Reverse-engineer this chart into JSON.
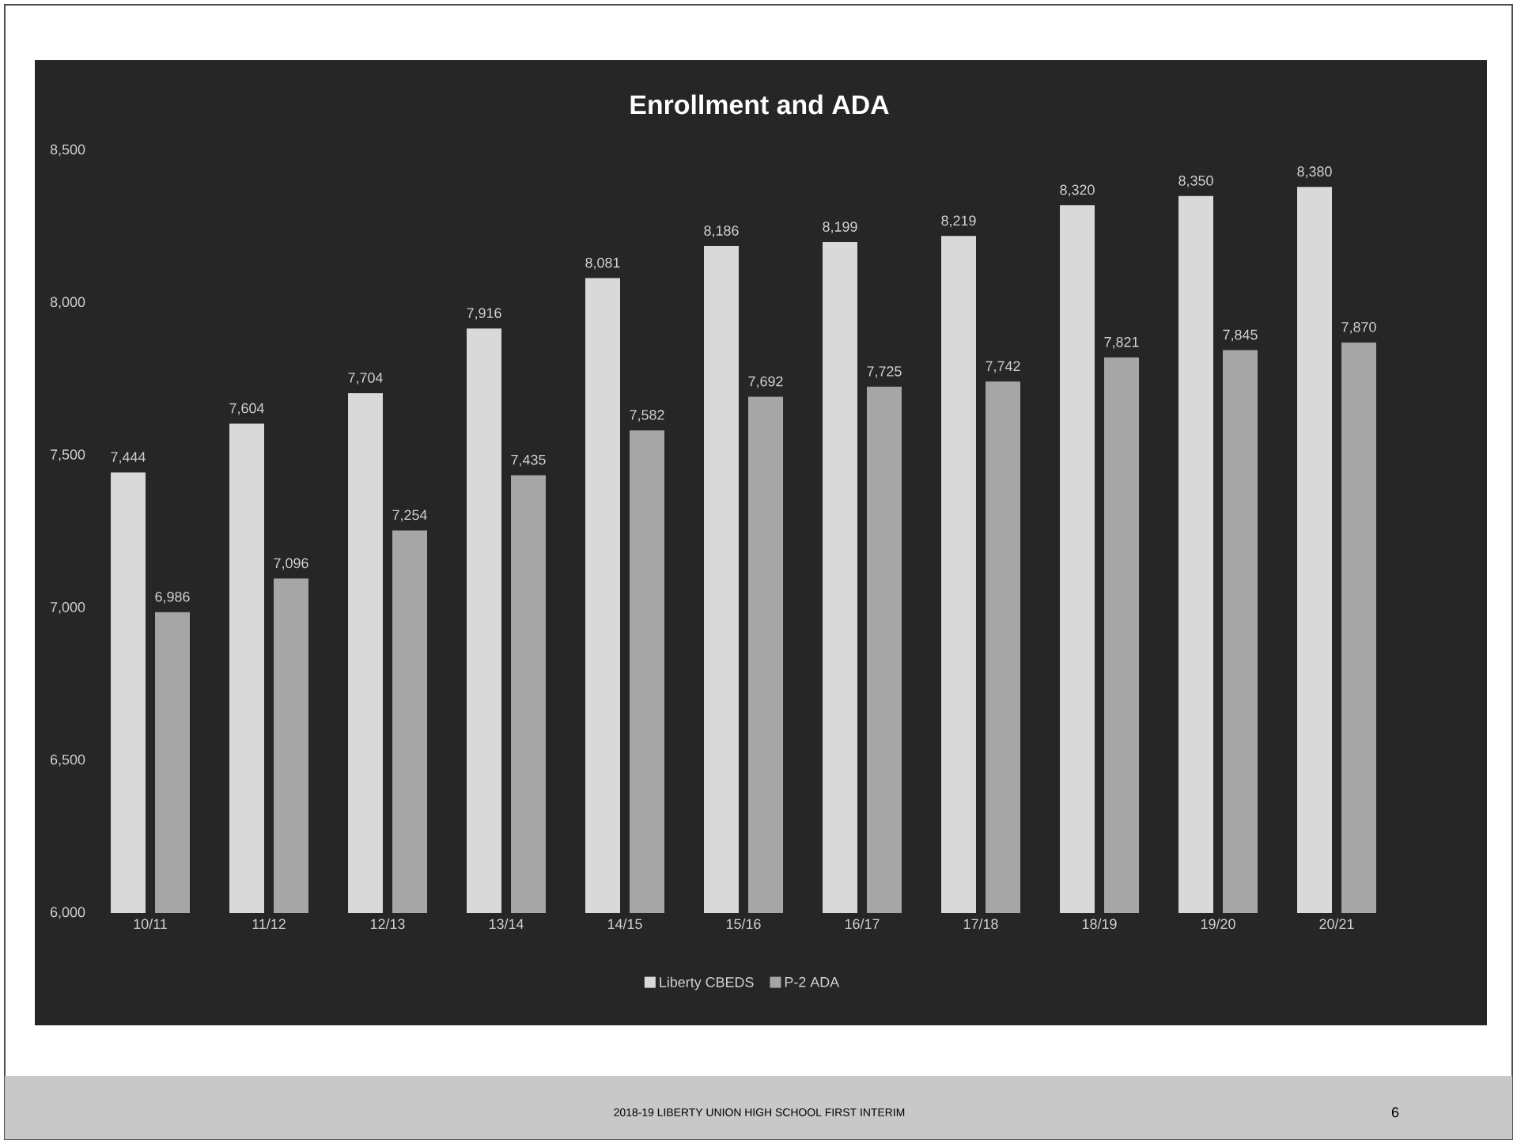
{
  "chart_data": {
    "type": "bar",
    "title": "Enrollment and ADA",
    "categories": [
      "10/11",
      "11/12",
      "12/13",
      "13/14",
      "14/15",
      "15/16",
      "16/17",
      "17/18",
      "18/19",
      "19/20",
      "20/21"
    ],
    "series": [
      {
        "name": "Liberty CBEDS",
        "color": "#d9d9d9",
        "values": [
          7444,
          7604,
          7704,
          7916,
          8081,
          8186,
          8199,
          8219,
          8320,
          8350,
          8380
        ],
        "value_labels": [
          "7,444",
          "7,604",
          "7,704",
          "7,916",
          "8,081",
          "8,186",
          "8,199",
          "8,219",
          "8,320",
          "8,350",
          "8,380"
        ]
      },
      {
        "name": "P-2 ADA",
        "color": "#a6a6a6",
        "values": [
          6986,
          7096,
          7254,
          7435,
          7582,
          7692,
          7725,
          7742,
          7821,
          7845,
          7870
        ],
        "value_labels": [
          "6,986",
          "7,096",
          "7,254",
          "7,435",
          "7,582",
          "7,692",
          "7,725",
          "7,742",
          "7,821",
          "7,845",
          "7,870"
        ]
      }
    ],
    "ylim": [
      6000,
      8500
    ],
    "yticks": [
      {
        "value": 6000,
        "label": "6,000"
      },
      {
        "value": 6500,
        "label": "6,500"
      },
      {
        "value": 7000,
        "label": "7,000"
      },
      {
        "value": 7500,
        "label": "7,500"
      },
      {
        "value": 8000,
        "label": "8,000"
      },
      {
        "value": 8500,
        "label": "8,500"
      }
    ],
    "legend": "bottom",
    "annotations": [
      "2018-19 LIBERTY UNION HIGH SCHOOL FIRST INTERIM",
      "6"
    ]
  }
}
